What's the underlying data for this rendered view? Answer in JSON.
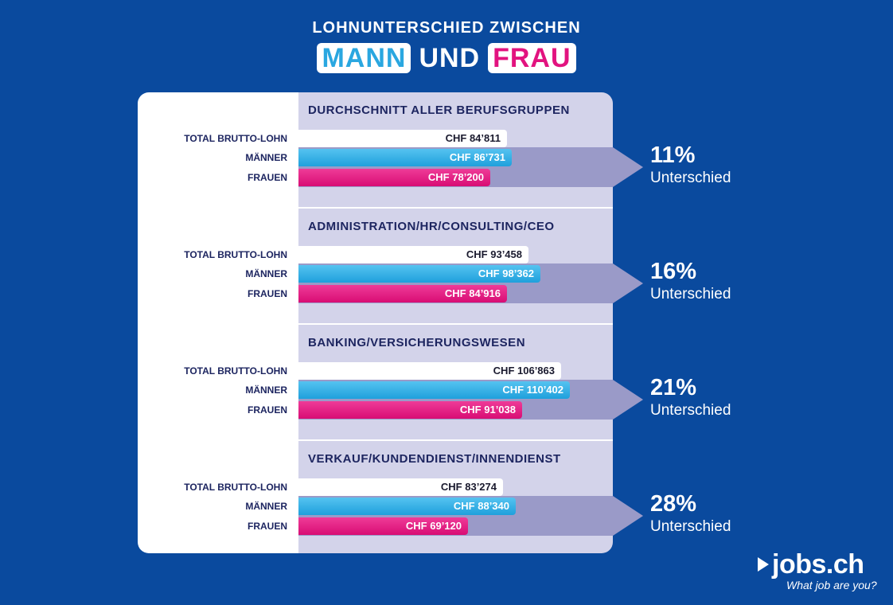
{
  "title": {
    "line1": "LOHNUNTERSCHIED  ZWISCHEN",
    "word_mann": "MANN",
    "word_und": "UND",
    "word_frau": "FRAU"
  },
  "labels": {
    "total": "TOTAL BRUTTO-LOHN",
    "men": "MÄNNER",
    "women": "FRAUEN",
    "difference_word": "Unterschied"
  },
  "colors": {
    "background": "#0a4a9e",
    "men": "#2aa7e0",
    "women": "#e2137f",
    "panel": "#d3d3ea",
    "arrow": "#9a9ac8"
  },
  "chart_data": {
    "type": "bar",
    "orientation": "horizontal",
    "value_prefix": "CHF",
    "groups": [
      {
        "title": "DURCHSCHNITT ALLER BERUFSGRUPPEN",
        "total": 84811,
        "men": 86731,
        "women": 78200,
        "total_label": "CHF 84’811",
        "men_label": "CHF 86’731",
        "women_label": "CHF 78’200",
        "difference": "11%"
      },
      {
        "title": "ADMINISTRATION/HR/CONSULTING/CEO",
        "total": 93458,
        "men": 98362,
        "women": 84916,
        "total_label": "CHF 93’458",
        "men_label": "CHF 98’362",
        "women_label": "CHF 84’916",
        "difference": "16%"
      },
      {
        "title": "BANKING/VERSICHERUNGSWESEN",
        "total": 106863,
        "men": 110402,
        "women": 91038,
        "total_label": "CHF 106’863",
        "men_label": "CHF 110’402",
        "women_label": "CHF 91’038",
        "difference": "21%"
      },
      {
        "title": "VERKAUF/KUNDENDIENST/INNENDIENST",
        "total": 83274,
        "men": 88340,
        "women": 69120,
        "total_label": "CHF 83’274",
        "men_label": "CHF 88’340",
        "women_label": "CHF 69’120",
        "difference": "28%"
      }
    ]
  },
  "branding": {
    "logo": "jobs.ch",
    "logo_icon": "play-icon",
    "tagline": "What job are you?"
  }
}
